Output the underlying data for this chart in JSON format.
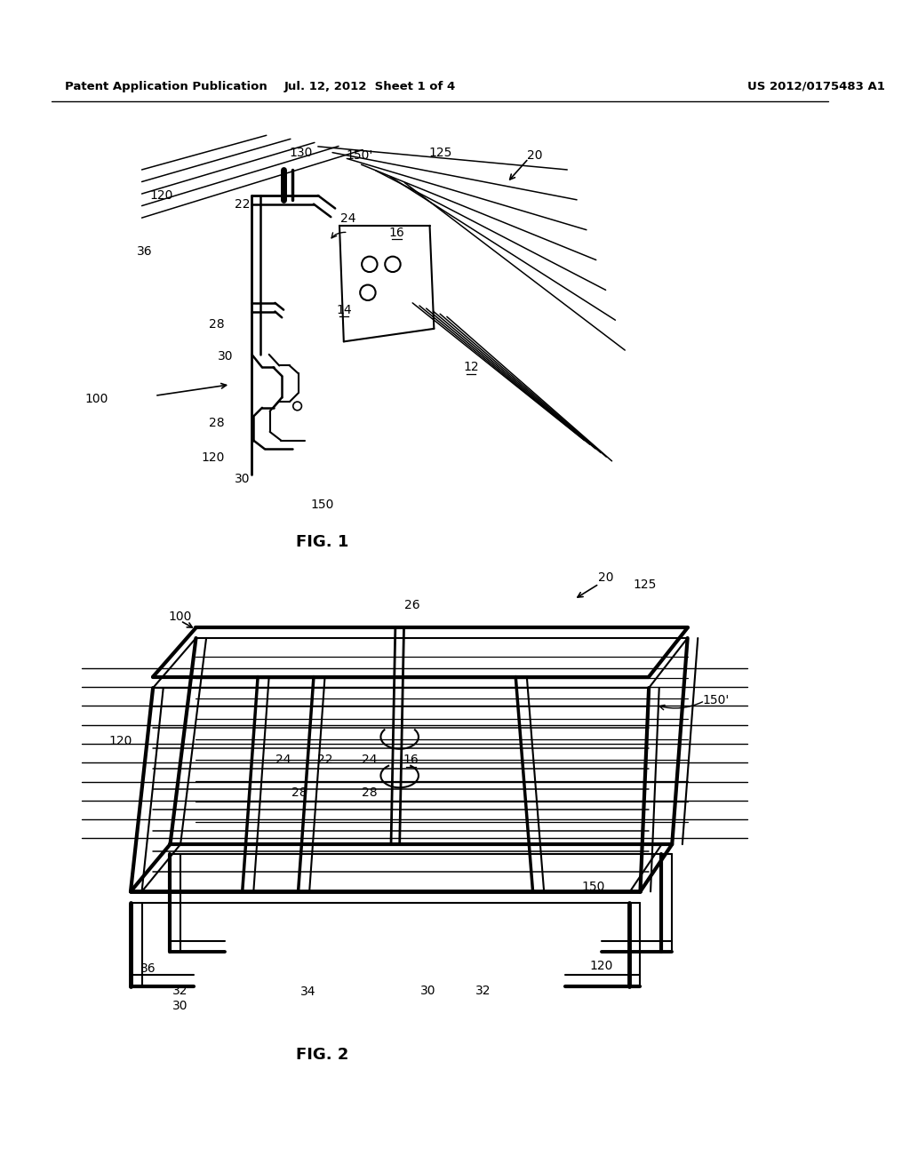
{
  "bg_color": "#ffffff",
  "header_left": "Patent Application Publication",
  "header_mid": "Jul. 12, 2012  Sheet 1 of 4",
  "header_right": "US 2012/0175483 A1",
  "fig1_label": "FIG. 1",
  "fig2_label": "FIG. 2",
  "fig_width": 10.24,
  "fig_height": 13.2,
  "dpi": 100
}
